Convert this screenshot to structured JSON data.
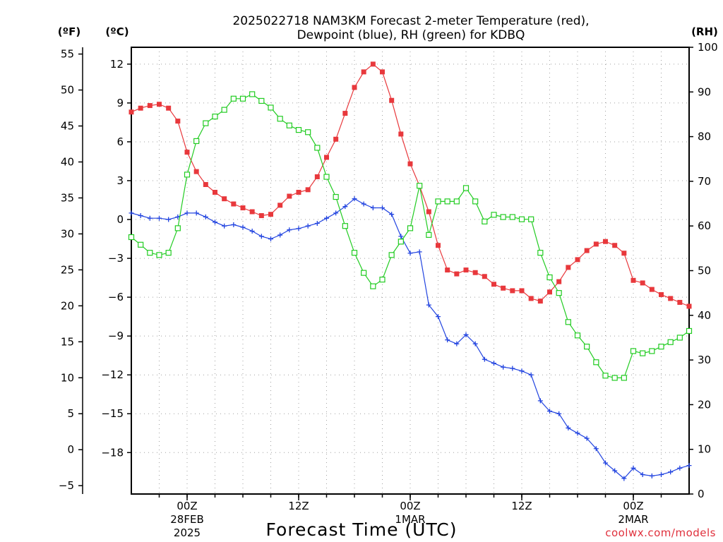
{
  "chart_data": {
    "type": "line",
    "title_line1": "2025022718 NAM3KM Forecast 2-meter Temperature (red),",
    "title_line2": "Dewpoint (blue), RH (green) for KDBQ",
    "xlabel": "Forecast Time (UTC)",
    "units": {
      "fahrenheit": "(ºF)",
      "celsius": "(ºC)",
      "rh": "(RH)"
    },
    "credit": "coolwx.com/models",
    "x_start_hour": 18,
    "x_range_hours": [
      18,
      78
    ],
    "x_ticks": [
      {
        "hour": 24,
        "label": "00Z",
        "sub1": "28FEB",
        "sub2": "2025"
      },
      {
        "hour": 36,
        "label": "12Z",
        "sub1": "",
        "sub2": ""
      },
      {
        "hour": 48,
        "label": "00Z",
        "sub1": "1MAR",
        "sub2": ""
      },
      {
        "hour": 60,
        "label": "12Z",
        "sub1": "",
        "sub2": ""
      },
      {
        "hour": 72,
        "label": "00Z",
        "sub1": "2MAR",
        "sub2": ""
      }
    ],
    "celsius_axis": {
      "range": [
        -21.2,
        13.3
      ],
      "ticks": [
        12,
        9,
        6,
        3,
        0,
        -3,
        -6,
        -9,
        -12,
        -15,
        -18
      ]
    },
    "fahrenheit_axis": {
      "ticks": [
        55,
        50,
        45,
        40,
        35,
        30,
        25,
        20,
        15,
        10,
        5,
        0,
        -5
      ]
    },
    "rh_axis": {
      "range": [
        0,
        100
      ],
      "ticks": [
        100,
        90,
        80,
        70,
        60,
        50,
        40,
        30,
        20,
        10,
        0
      ]
    },
    "grid": true,
    "series": [
      {
        "name": "Temperature",
        "color": "#e8383c",
        "marker": "filled-square",
        "axis": "celsius",
        "values": [
          8.3,
          8.6,
          8.8,
          8.9,
          8.6,
          7.6,
          5.2,
          3.7,
          2.7,
          2.1,
          1.6,
          1.2,
          0.9,
          0.6,
          0.3,
          0.4,
          1.1,
          1.8,
          2.1,
          2.3,
          3.3,
          4.8,
          6.2,
          8.2,
          10.2,
          11.4,
          12.0,
          11.4,
          9.2,
          6.6,
          4.3,
          2.6,
          0.6,
          -2.0,
          -3.9,
          -4.2,
          -3.9,
          -4.1,
          -4.4,
          -5.0,
          -5.3,
          -5.5,
          -5.5,
          -6.1,
          -6.3,
          -5.6,
          -4.8,
          -3.7,
          -3.1,
          -2.4,
          -1.9,
          -1.7,
          -2.0,
          -2.6,
          -4.7,
          -4.9,
          -5.4,
          -5.8,
          -6.1,
          -6.4,
          -6.7
        ]
      },
      {
        "name": "Dewpoint",
        "color": "#2244e0",
        "marker": "plus",
        "axis": "celsius",
        "values": [
          0.5,
          0.3,
          0.1,
          0.1,
          0.0,
          0.2,
          0.5,
          0.5,
          0.2,
          -0.2,
          -0.5,
          -0.4,
          -0.6,
          -0.9,
          -1.3,
          -1.5,
          -1.2,
          -0.8,
          -0.7,
          -0.5,
          -0.3,
          0.1,
          0.5,
          1.0,
          1.6,
          1.2,
          0.9,
          0.9,
          0.4,
          -1.3,
          -2.6,
          -2.5,
          -6.6,
          -7.5,
          -9.3,
          -9.6,
          -8.9,
          -9.6,
          -10.8,
          -11.1,
          -11.4,
          -11.5,
          -11.7,
          -12.0,
          -14.0,
          -14.8,
          -15.0,
          -16.1,
          -16.5,
          -16.9,
          -17.7,
          -18.8,
          -19.4,
          -20.0,
          -19.2,
          -19.7,
          -19.8,
          -19.7,
          -19.5,
          -19.2,
          -19.0
        ]
      },
      {
        "name": "RH",
        "color": "#22cc22",
        "marker": "open-square",
        "axis": "rh",
        "values": [
          57.5,
          55.8,
          54.0,
          53.5,
          54.0,
          59.5,
          71.5,
          79.0,
          83.0,
          84.5,
          86.0,
          88.5,
          88.5,
          89.5,
          88.0,
          86.5,
          84.0,
          82.5,
          81.5,
          81.0,
          77.5,
          71.0,
          66.5,
          60.0,
          54.0,
          49.5,
          46.5,
          48.0,
          53.5,
          56.5,
          59.5,
          69.0,
          58.0,
          65.5,
          65.5,
          65.5,
          68.5,
          65.5,
          61.0,
          62.5,
          62.0,
          62.0,
          61.5,
          61.5,
          54.0,
          48.5,
          45.0,
          38.5,
          35.5,
          33.0,
          29.5,
          26.5,
          26.0,
          26.0,
          32.0,
          31.5,
          32.0,
          33.0,
          34.0,
          35.0,
          36.5
        ]
      }
    ]
  }
}
